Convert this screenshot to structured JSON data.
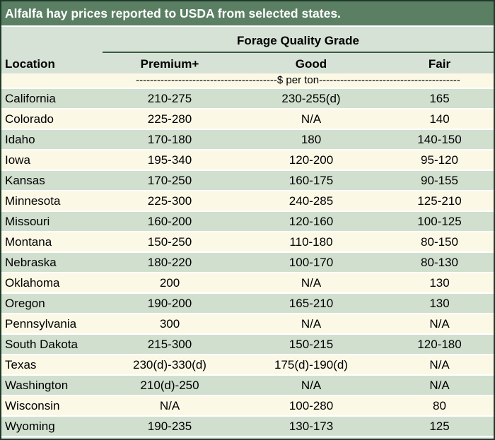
{
  "title": "Alfalfa hay prices reported to USDA from selected states.",
  "header": {
    "group": "Forage Quality Grade",
    "location": "Location",
    "premium": "Premium+",
    "good": "Good",
    "fair": "Fair",
    "units": "----------------------------------------$ per ton----------------------------------------"
  },
  "rows": [
    {
      "location": "California",
      "premium": "210-275",
      "good": "230-255(d)",
      "fair": "165"
    },
    {
      "location": "Colorado",
      "premium": "225-280",
      "good": "N/A",
      "fair": "140"
    },
    {
      "location": "Idaho",
      "premium": "170-180",
      "good": "180",
      "fair": "140-150"
    },
    {
      "location": "Iowa",
      "premium": "195-340",
      "good": "120-200",
      "fair": "95-120"
    },
    {
      "location": "Kansas",
      "premium": "170-250",
      "good": "160-175",
      "fair": "90-155"
    },
    {
      "location": "Minnesota",
      "premium": "225-300",
      "good": "240-285",
      "fair": "125-210"
    },
    {
      "location": "Missouri",
      "premium": "160-200",
      "good": "120-160",
      "fair": "100-125"
    },
    {
      "location": "Montana",
      "premium": "150-250",
      "good": "110-180",
      "fair": "80-150"
    },
    {
      "location": "Nebraska",
      "premium": "180-220",
      "good": "100-170",
      "fair": "80-130"
    },
    {
      "location": "Oklahoma",
      "premium": "200",
      "good": "N/A",
      "fair": "130"
    },
    {
      "location": "Oregon",
      "premium": "190-200",
      "good": "165-210",
      "fair": "130"
    },
    {
      "location": "Pennsylvania",
      "premium": "300",
      "good": "N/A",
      "fair": "N/A"
    },
    {
      "location": "South Dakota",
      "premium": "215-300",
      "good": "150-215",
      "fair": "120-180"
    },
    {
      "location": "Texas",
      "premium": "230(d)-330(d)",
      "good": "175(d)-190(d)",
      "fair": "N/A"
    },
    {
      "location": "Washington",
      "premium": "210(d)-250",
      "good": "N/A",
      "fair": "N/A"
    },
    {
      "location": "Wisconsin",
      "premium": "N/A",
      "good": "100-280",
      "fair": "80"
    },
    {
      "location": "Wyoming",
      "premium": "190-235",
      "good": "130-173",
      "fair": "125"
    }
  ]
}
